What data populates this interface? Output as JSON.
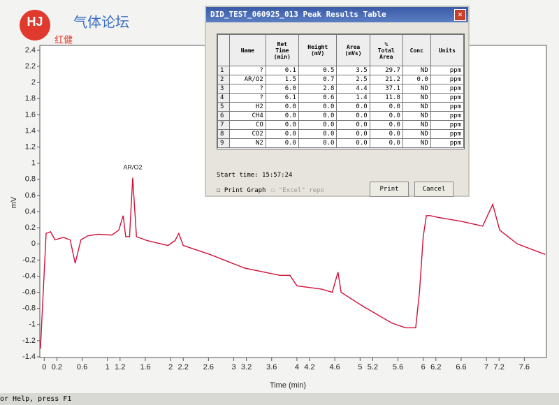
{
  "logo": {
    "mark": "HJ",
    "title": "气体论坛",
    "subtitle": "红健"
  },
  "chart_data": {
    "type": "line",
    "xlabel": "Time (min)",
    "ylabel": "mV",
    "annotation": "AR/O2",
    "x": [
      -0.06,
      0.03,
      0.1,
      0.17,
      0.3,
      0.41,
      0.49,
      0.58,
      0.69,
      0.85,
      1.07,
      1.18,
      1.25,
      1.29,
      1.35,
      1.4,
      1.46,
      1.63,
      1.96,
      2.07,
      2.13,
      2.2,
      2.62,
      3.17,
      3.73,
      3.89,
      4.0,
      4.39,
      4.56,
      4.65,
      4.7,
      5.06,
      5.5,
      5.72,
      5.88,
      5.94,
      6.0,
      6.05,
      6.11,
      6.22,
      6.6,
      6.94,
      7.1,
      7.21,
      7.49,
      7.93
    ],
    "values": [
      -1.3,
      0.13,
      0.15,
      0.05,
      0.08,
      0.05,
      -0.24,
      0.05,
      0.1,
      0.12,
      0.11,
      0.17,
      0.35,
      0.09,
      0.09,
      0.82,
      0.09,
      0.04,
      -0.02,
      0.04,
      0.13,
      -0.02,
      -0.13,
      -0.3,
      -0.39,
      -0.39,
      -0.52,
      -0.56,
      -0.6,
      -0.35,
      -0.6,
      -0.78,
      -0.98,
      -1.04,
      -1.04,
      -0.6,
      0.09,
      0.35,
      0.35,
      0.33,
      0.28,
      0.22,
      0.49,
      0.17,
      0.0,
      -0.13
    ],
    "color": "#d0103a",
    "xlim": [
      -0.07,
      7.95
    ],
    "xticks": [
      0,
      0.2,
      0.6,
      1,
      1.2,
      1.6,
      2,
      2.2,
      2.6,
      3,
      3.2,
      3.6,
      4,
      4.2,
      4.6,
      5,
      5.2,
      5.6,
      6,
      6.2,
      6.6,
      7,
      7.2,
      7.6
    ],
    "ylim": [
      -1.4,
      2.4
    ],
    "yticks": [
      2.4,
      2.2,
      2,
      1.8,
      1.6,
      1.4,
      1.2,
      1,
      0.8,
      0.6,
      0.4,
      0.2,
      0,
      -0.2,
      -0.4,
      -0.6,
      -0.8,
      -1,
      -1.2,
      -1.4
    ]
  },
  "dialog": {
    "title": "DID_TEST_060925_013 Peak Results Table",
    "table": {
      "header": [
        "",
        "Name",
        "Ret\nTime\n(min)",
        "Height\n(mV)",
        "Area\n(mVs)",
        "%\nTotal\nArea",
        "Conc",
        "Units"
      ],
      "rows": [
        [
          "1",
          "?",
          "0.1",
          "0.5",
          "3.5",
          "29.7",
          "ND",
          "ppm"
        ],
        [
          "2",
          "AR/O2",
          "1.5",
          "0.7",
          "2.5",
          "21.2",
          "0.0",
          "ppm"
        ],
        [
          "3",
          "?",
          "6.0",
          "2.8",
          "4.4",
          "37.1",
          "ND",
          "ppm"
        ],
        [
          "4",
          "?",
          "6.1",
          "0.6",
          "1.4",
          "11.8",
          "ND",
          "ppm"
        ],
        [
          "5",
          "H2",
          "0.0",
          "0.0",
          "0.0",
          "0.0",
          "ND",
          "ppm"
        ],
        [
          "6",
          "CH4",
          "0.0",
          "0.0",
          "0.0",
          "0.0",
          "ND",
          "ppm"
        ],
        [
          "7",
          "CO",
          "0.0",
          "0.0",
          "0.0",
          "0.0",
          "ND",
          "ppm"
        ],
        [
          "8",
          "CO2",
          "0.0",
          "0.0",
          "0.0",
          "0.0",
          "ND",
          "ppm"
        ],
        [
          "9",
          "N2",
          "0.0",
          "0.0",
          "0.0",
          "0.0",
          "ND",
          "ppm"
        ]
      ]
    },
    "start_time": "Start time: 15:57:24",
    "print_graph": "Print Graph",
    "excel": "\"Excel\" repo",
    "print": "Print",
    "cancel": "Cancel"
  },
  "status": "or Help, press F1"
}
